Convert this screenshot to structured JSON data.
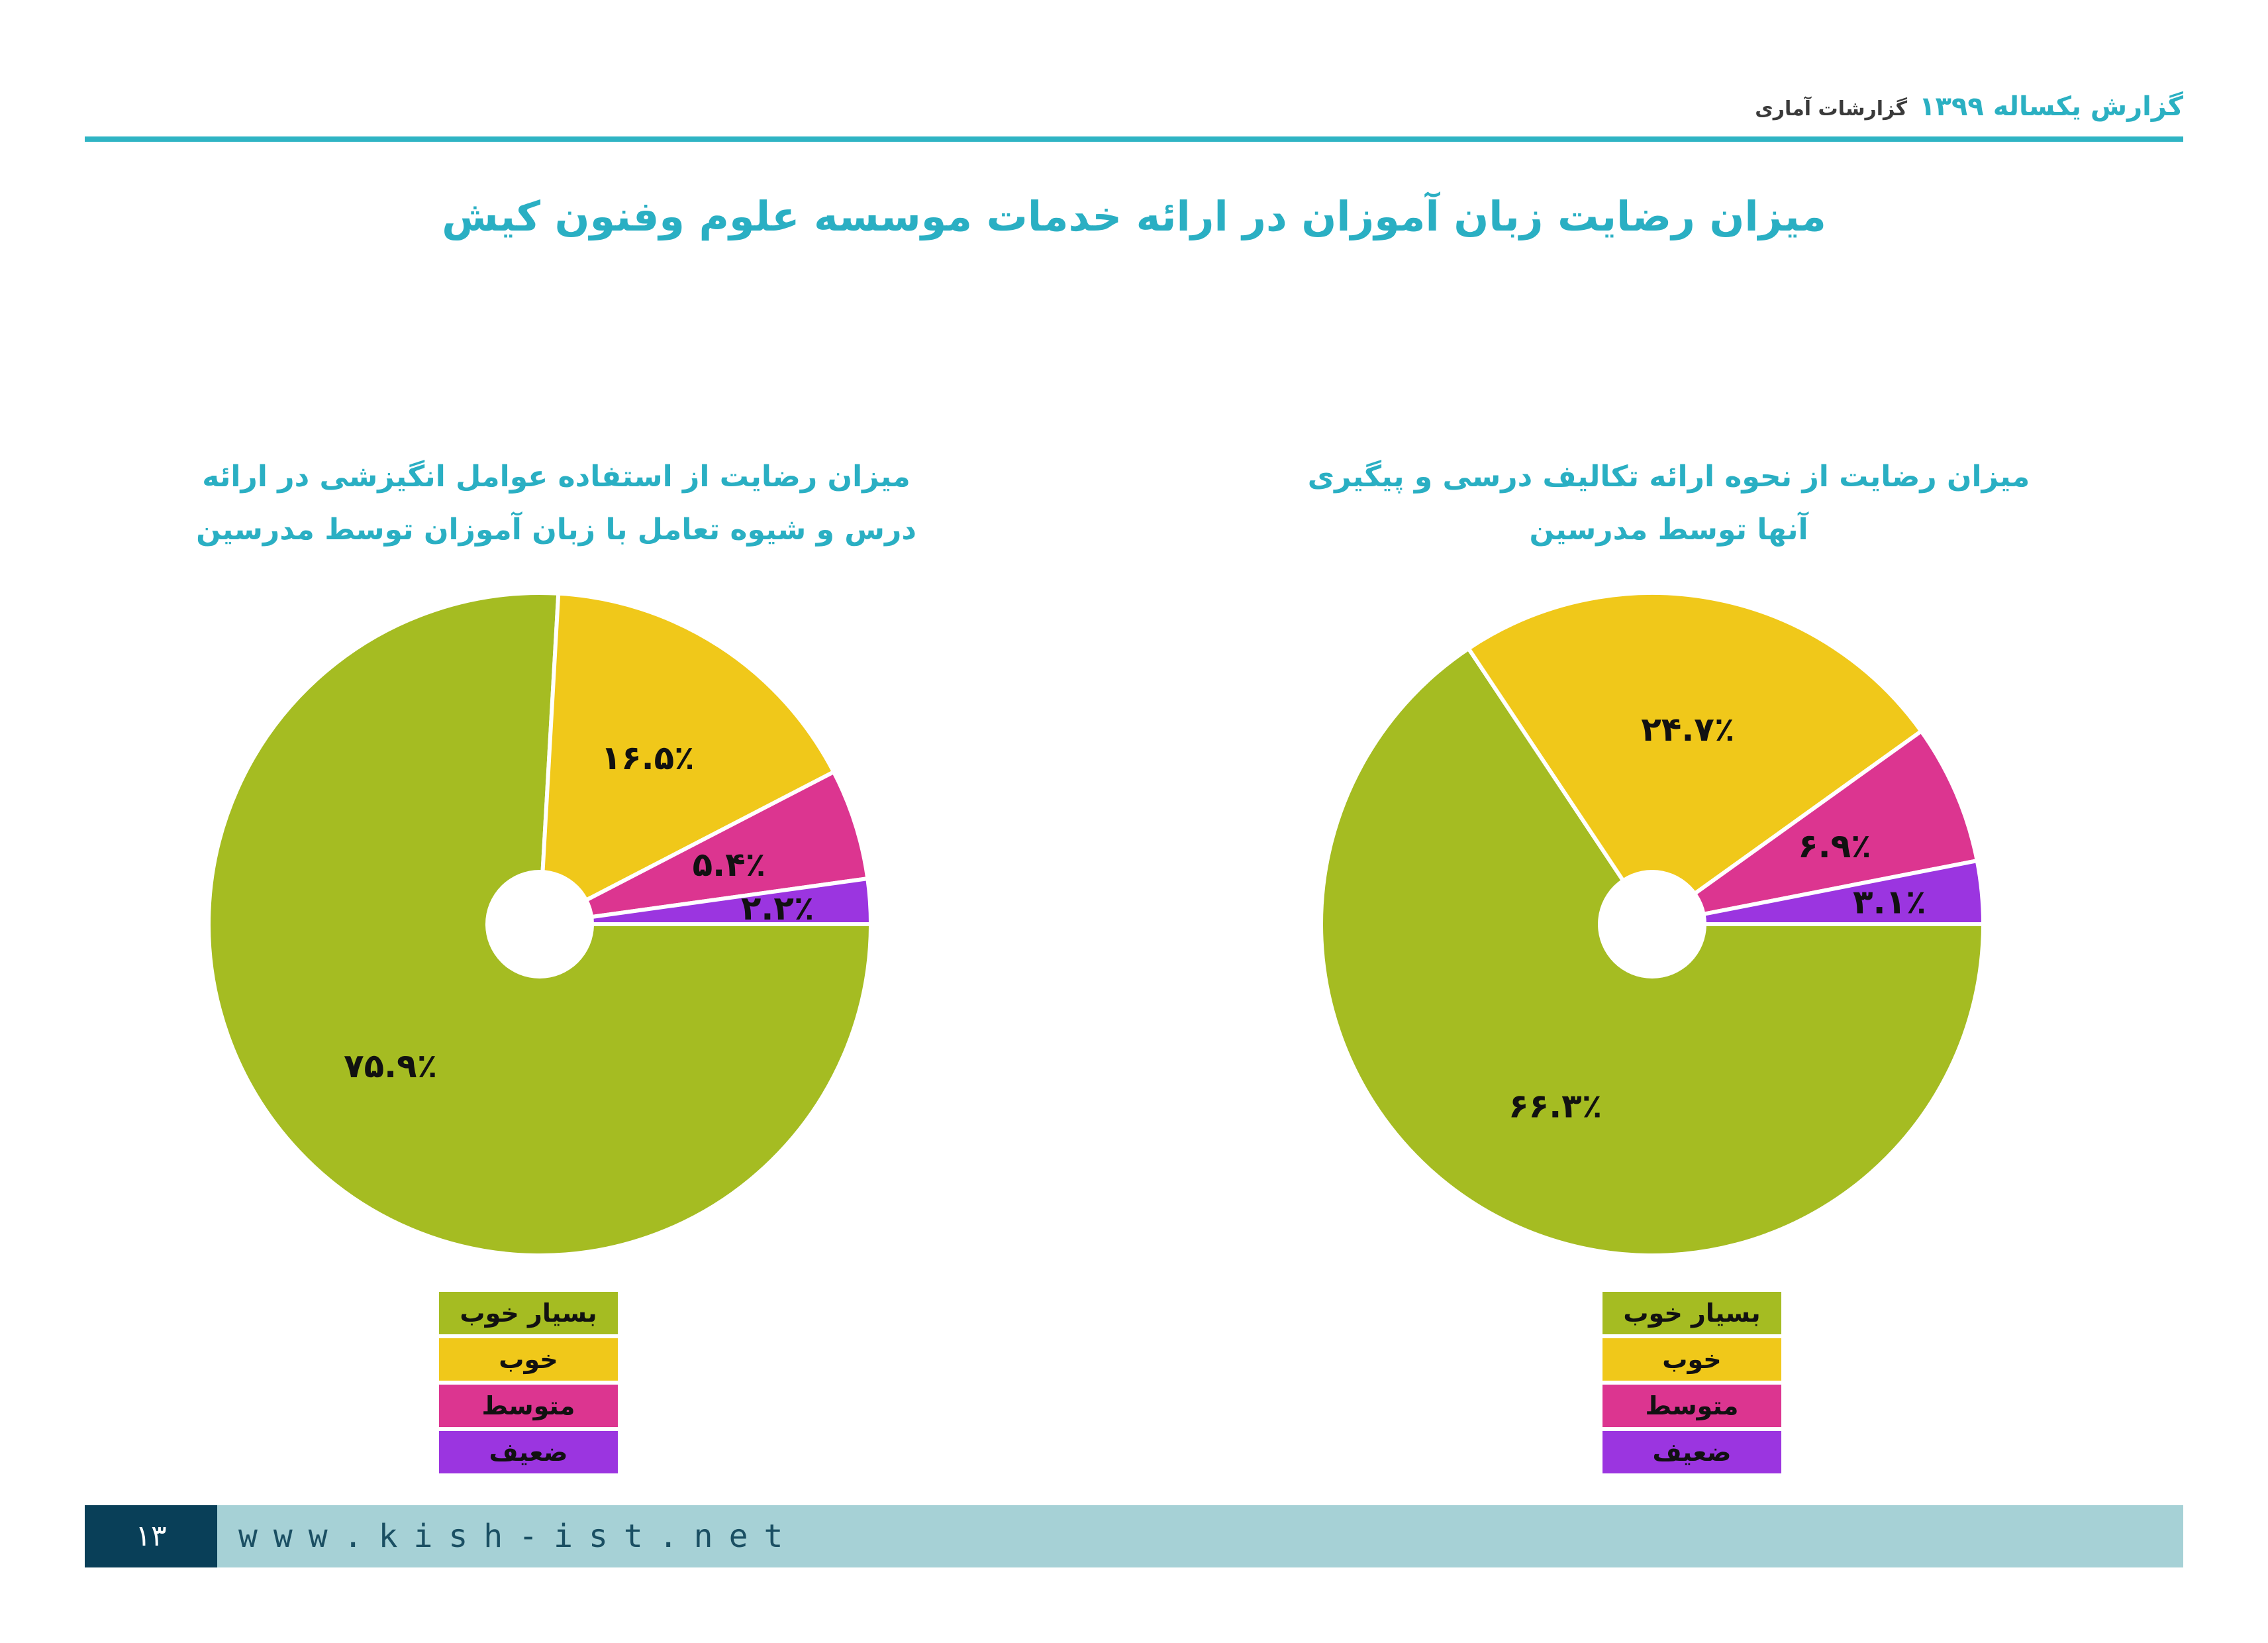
{
  "header": {
    "title": "گزارش یکساله ۱۳۹۹",
    "subtitle": "گزارشات آماری",
    "accent_color": "#2fb4c4"
  },
  "main_title": "میزان رضایت زبان آموزان در ارائه خدمات موسسه علوم وفنون کیش",
  "legend_labels": [
    "بسیار خوب",
    "خوب",
    "متوسط",
    "ضعیف"
  ],
  "chart_data": [
    {
      "type": "pie",
      "title_lines": [
        "میزان رضایت از استفاده عوامل انگیزشی در ارائه",
        "درس و شیوه تعامل با زبان آموزان توسط مدرسین"
      ],
      "categories": [
        "بسیار خوب",
        "خوب",
        "متوسط",
        "ضعیف"
      ],
      "values": [
        75.9,
        16.5,
        5.4,
        2.2
      ],
      "value_labels": [
        "۷۵.۹٪",
        "۱۶.۵٪",
        "۵.۴٪",
        "۲.۲٪"
      ],
      "colors": [
        "#a5bc22",
        "#f0c81a",
        "#dc3590",
        "#9b35e0"
      ]
    },
    {
      "type": "pie",
      "title_lines": [
        "میزان رضایت از نحوه ارائه تکالیف درسی و پیگیری",
        "آنها توسط مدرسین"
      ],
      "categories": [
        "بسیار خوب",
        "خوب",
        "متوسط",
        "ضعیف"
      ],
      "values": [
        66.3,
        24.7,
        6.9,
        3.1
      ],
      "value_labels": [
        "۶۶.۳٪",
        "۲۴.۷٪",
        "۶.۹٪",
        "۳.۱٪"
      ],
      "colors": [
        "#a5bc22",
        "#f0c81a",
        "#dc3590",
        "#9b35e0"
      ]
    }
  ],
  "footer": {
    "page_number": "۱۳",
    "url": "www.kish-ist.net"
  }
}
